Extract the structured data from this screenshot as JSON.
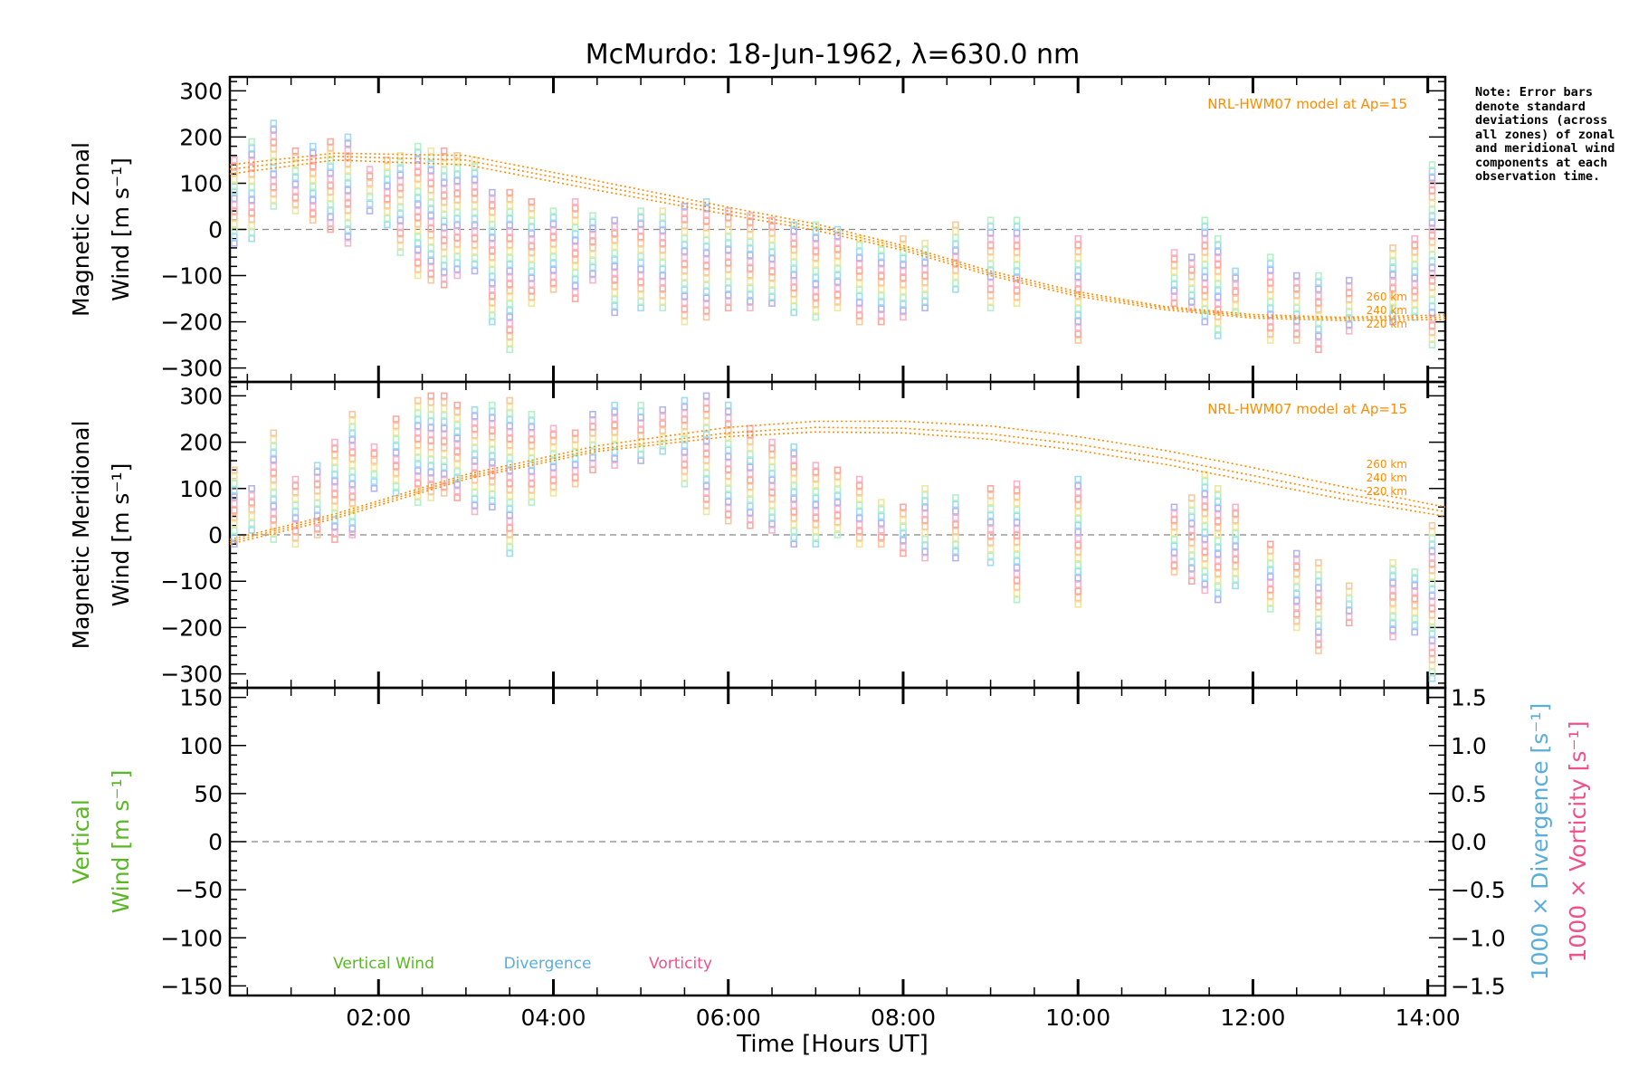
{
  "title": "McMurdo: 18-Jun-1962, λ=630.0 nm",
  "note": "Note: Error bars denote standard deviations (across all zones) of zonal and meridional wind components at each observation time.",
  "xlabel": "Time [Hours UT]",
  "model_color": "#ff8c00",
  "chart_data": [
    {
      "type": "scatter",
      "panel": "zonal",
      "ylabel": [
        "Magnetic Zonal",
        "Wind [m s⁻¹]"
      ],
      "ylim": [
        -330,
        330
      ],
      "yticks": [
        -300,
        -200,
        -100,
        0,
        100,
        200,
        300
      ],
      "xlim": [
        0.3,
        14.2
      ],
      "xticks": [
        "02:00",
        "04:00",
        "06:00",
        "08:00",
        "10:00",
        "12:00",
        "14:00"
      ],
      "model_label": "NRL-HWM07 model at Ap=15",
      "model_altitudes": [
        "260 km",
        "240 km",
        "220 km"
      ],
      "model_curves": {
        "x": [
          0.3,
          1.5,
          3.0,
          4.5,
          6.0,
          7.0,
          8.0,
          9.0,
          10.0,
          11.0,
          12.0,
          13.0,
          14.2
        ],
        "240 km": [
          130,
          158,
          150,
          95,
          40,
          5,
          -40,
          -95,
          -140,
          -170,
          -188,
          -193,
          -190
        ],
        "260 km": [
          140,
          165,
          160,
          105,
          48,
          12,
          -35,
          -90,
          -135,
          -167,
          -184,
          -190,
          -185
        ],
        "220 km": [
          120,
          150,
          140,
          85,
          32,
          -2,
          -45,
          -100,
          -145,
          -174,
          -192,
          -197,
          -195
        ]
      },
      "observations": [
        {
          "t": 0.35,
          "min": -30,
          "max": 150
        },
        {
          "t": 0.55,
          "min": -20,
          "max": 190
        },
        {
          "t": 0.8,
          "min": 50,
          "max": 230
        },
        {
          "t": 1.05,
          "min": 40,
          "max": 170
        },
        {
          "t": 1.25,
          "min": 20,
          "max": 180
        },
        {
          "t": 1.45,
          "min": 0,
          "max": 190
        },
        {
          "t": 1.65,
          "min": -30,
          "max": 200
        },
        {
          "t": 1.9,
          "min": 40,
          "max": 130
        },
        {
          "t": 2.1,
          "min": 10,
          "max": 150
        },
        {
          "t": 2.25,
          "min": -50,
          "max": 160
        },
        {
          "t": 2.45,
          "min": -100,
          "max": 180
        },
        {
          "t": 2.6,
          "min": -110,
          "max": 170
        },
        {
          "t": 2.75,
          "min": -120,
          "max": 170
        },
        {
          "t": 2.9,
          "min": -100,
          "max": 160
        },
        {
          "t": 3.1,
          "min": -90,
          "max": 150
        },
        {
          "t": 3.3,
          "min": -200,
          "max": 80
        },
        {
          "t": 3.5,
          "min": -260,
          "max": 80
        },
        {
          "t": 3.75,
          "min": -160,
          "max": 60
        },
        {
          "t": 4.0,
          "min": -130,
          "max": 40
        },
        {
          "t": 4.25,
          "min": -150,
          "max": 60
        },
        {
          "t": 4.45,
          "min": -110,
          "max": 30
        },
        {
          "t": 4.7,
          "min": -180,
          "max": 20
        },
        {
          "t": 5.0,
          "min": -170,
          "max": 40
        },
        {
          "t": 5.25,
          "min": -170,
          "max": 40
        },
        {
          "t": 5.5,
          "min": -200,
          "max": 50
        },
        {
          "t": 5.75,
          "min": -190,
          "max": 60
        },
        {
          "t": 6.0,
          "min": -170,
          "max": 40
        },
        {
          "t": 6.25,
          "min": -170,
          "max": 30
        },
        {
          "t": 6.5,
          "min": -160,
          "max": 20
        },
        {
          "t": 6.75,
          "min": -180,
          "max": 10
        },
        {
          "t": 7.0,
          "min": -190,
          "max": 10
        },
        {
          "t": 7.25,
          "min": -170,
          "max": 0
        },
        {
          "t": 7.5,
          "min": -200,
          "max": -20
        },
        {
          "t": 7.75,
          "min": -200,
          "max": -30
        },
        {
          "t": 8.0,
          "min": -190,
          "max": -20
        },
        {
          "t": 8.25,
          "min": -170,
          "max": -30
        },
        {
          "t": 8.6,
          "min": -130,
          "max": 10
        },
        {
          "t": 9.0,
          "min": -170,
          "max": 20
        },
        {
          "t": 9.3,
          "min": -160,
          "max": 20
        },
        {
          "t": 10.0,
          "min": -240,
          "max": -20
        },
        {
          "t": 11.1,
          "min": -160,
          "max": -50
        },
        {
          "t": 11.3,
          "min": -170,
          "max": -60
        },
        {
          "t": 11.45,
          "min": -200,
          "max": 20
        },
        {
          "t": 11.6,
          "min": -230,
          "max": -20
        },
        {
          "t": 11.8,
          "min": -180,
          "max": -90
        },
        {
          "t": 12.2,
          "min": -240,
          "max": -60
        },
        {
          "t": 12.5,
          "min": -240,
          "max": -100
        },
        {
          "t": 12.75,
          "min": -260,
          "max": -100
        },
        {
          "t": 13.1,
          "min": -220,
          "max": -110
        },
        {
          "t": 13.6,
          "min": -200,
          "max": -40
        },
        {
          "t": 13.85,
          "min": -190,
          "max": -20
        },
        {
          "t": 14.05,
          "min": -250,
          "max": 140
        }
      ]
    },
    {
      "type": "scatter",
      "panel": "meridional",
      "ylabel": [
        "Magnetic Meridional",
        "Wind [m s⁻¹]"
      ],
      "ylim": [
        -330,
        330
      ],
      "yticks": [
        -300,
        -200,
        -100,
        0,
        100,
        200,
        300
      ],
      "xlim": [
        0.3,
        14.2
      ],
      "model_label": "NRL-HWM07 model at Ap=15",
      "model_altitudes": [
        "260 km",
        "240 km",
        "220 km"
      ],
      "model_curves": {
        "x": [
          0.3,
          1.5,
          3.0,
          4.5,
          6.0,
          7.0,
          8.0,
          9.0,
          10.0,
          11.0,
          12.0,
          13.0,
          14.2
        ],
        "240 km": [
          -15,
          40,
          125,
          185,
          220,
          232,
          230,
          218,
          195,
          165,
          128,
          90,
          50
        ],
        "260 km": [
          -10,
          45,
          130,
          192,
          232,
          245,
          245,
          235,
          212,
          182,
          145,
          105,
          60
        ],
        "220 km": [
          -20,
          35,
          120,
          180,
          212,
          222,
          220,
          206,
          182,
          152,
          115,
          78,
          40
        ]
      },
      "observations": [
        {
          "t": 0.35,
          "min": -20,
          "max": 140
        },
        {
          "t": 0.55,
          "min": 10,
          "max": 100
        },
        {
          "t": 0.8,
          "min": -10,
          "max": 220
        },
        {
          "t": 1.05,
          "min": -20,
          "max": 120
        },
        {
          "t": 1.3,
          "min": 0,
          "max": 150
        },
        {
          "t": 1.5,
          "min": -10,
          "max": 200
        },
        {
          "t": 1.7,
          "min": 0,
          "max": 260
        },
        {
          "t": 1.95,
          "min": 100,
          "max": 190
        },
        {
          "t": 2.2,
          "min": 90,
          "max": 250
        },
        {
          "t": 2.45,
          "min": 70,
          "max": 290
        },
        {
          "t": 2.6,
          "min": 80,
          "max": 300
        },
        {
          "t": 2.75,
          "min": 90,
          "max": 300
        },
        {
          "t": 2.9,
          "min": 80,
          "max": 280
        },
        {
          "t": 3.1,
          "min": 50,
          "max": 270
        },
        {
          "t": 3.3,
          "min": 60,
          "max": 280
        },
        {
          "t": 3.5,
          "min": -40,
          "max": 290
        },
        {
          "t": 3.75,
          "min": 70,
          "max": 260
        },
        {
          "t": 4.0,
          "min": 90,
          "max": 230
        },
        {
          "t": 4.25,
          "min": 110,
          "max": 220
        },
        {
          "t": 4.45,
          "min": 140,
          "max": 260
        },
        {
          "t": 4.7,
          "min": 150,
          "max": 280
        },
        {
          "t": 5.0,
          "min": 160,
          "max": 280
        },
        {
          "t": 5.25,
          "min": 180,
          "max": 270
        },
        {
          "t": 5.5,
          "min": 110,
          "max": 290
        },
        {
          "t": 5.75,
          "min": 50,
          "max": 300
        },
        {
          "t": 6.0,
          "min": 30,
          "max": 280
        },
        {
          "t": 6.25,
          "min": 20,
          "max": 230
        },
        {
          "t": 6.5,
          "min": 10,
          "max": 200
        },
        {
          "t": 6.75,
          "min": -20,
          "max": 190
        },
        {
          "t": 7.0,
          "min": -20,
          "max": 150
        },
        {
          "t": 7.25,
          "min": 0,
          "max": 140
        },
        {
          "t": 7.5,
          "min": -20,
          "max": 120
        },
        {
          "t": 7.75,
          "min": -20,
          "max": 70
        },
        {
          "t": 8.0,
          "min": -40,
          "max": 60
        },
        {
          "t": 8.25,
          "min": -50,
          "max": 100
        },
        {
          "t": 8.6,
          "min": -50,
          "max": 80
        },
        {
          "t": 9.0,
          "min": -60,
          "max": 100
        },
        {
          "t": 9.3,
          "min": -140,
          "max": 110
        },
        {
          "t": 10.0,
          "min": -150,
          "max": 120
        },
        {
          "t": 11.1,
          "min": -80,
          "max": 60
        },
        {
          "t": 11.3,
          "min": -100,
          "max": 80
        },
        {
          "t": 11.45,
          "min": -120,
          "max": 130
        },
        {
          "t": 11.6,
          "min": -140,
          "max": 100
        },
        {
          "t": 11.8,
          "min": -110,
          "max": 60
        },
        {
          "t": 12.2,
          "min": -160,
          "max": -20
        },
        {
          "t": 12.5,
          "min": -200,
          "max": -40
        },
        {
          "t": 12.75,
          "min": -250,
          "max": -60
        },
        {
          "t": 13.1,
          "min": -190,
          "max": -110
        },
        {
          "t": 13.6,
          "min": -220,
          "max": -60
        },
        {
          "t": 13.85,
          "min": -210,
          "max": -80
        },
        {
          "t": 14.05,
          "min": -310,
          "max": 20
        }
      ]
    },
    {
      "type": "line",
      "panel": "vertical",
      "ylabel": [
        "Vertical",
        "Wind [m s⁻¹]"
      ],
      "ylim": [
        -160,
        160
      ],
      "yticks": [
        -150,
        -100,
        -50,
        0,
        50,
        100,
        150
      ],
      "right_axis": {
        "ylim": [
          -1.6,
          1.6
        ],
        "yticks": [
          "-1.5",
          "-1.0",
          "-0.5",
          "0.0",
          "0.5",
          "1.0",
          "1.5"
        ],
        "ylabel_divergence": "1000 × Divergence [s⁻¹]",
        "ylabel_vorticity": "1000 × Vorticity [s⁻¹]"
      },
      "legend": [
        {
          "label": "Vertical Wind",
          "color": "#5ab825"
        },
        {
          "label": "Divergence",
          "color": "#5aaedc"
        },
        {
          "label": "Vorticity",
          "color": "#f0508c"
        }
      ],
      "series": []
    }
  ]
}
